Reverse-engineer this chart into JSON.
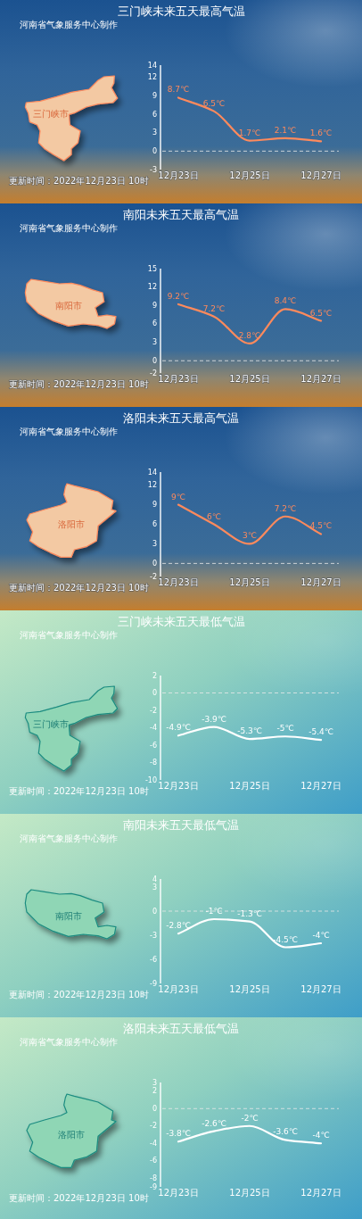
{
  "chart_data": [
    {
      "type": "line",
      "title": "三门峡未来五天最高气温",
      "categories": [
        "12月23日",
        null,
        "12月25日",
        null,
        "12月27日"
      ],
      "series": [
        {
          "color": "#ff8a5c",
          "values": [
            8.7,
            6.5,
            1.7,
            2.1,
            1.6
          ],
          "value_labels": [
            "8.7℃",
            "6.5℃",
            "1.7℃",
            "2.1℃",
            "1.6℃"
          ]
        }
      ],
      "ylim": [
        -3,
        14
      ],
      "yticks": [
        -3,
        0,
        3,
        6,
        9,
        12,
        14
      ],
      "ref_lines": [
        {
          "axis": "y",
          "value": 0,
          "line_style": "dashed",
          "color": "#e8e8e8"
        }
      ],
      "annotations": [
        "河南省气象服务中心制作",
        "更新时间：2022年12月23日 10时",
        "三门峡市"
      ]
    },
    {
      "type": "line",
      "title": "南阳未来五天最高气温",
      "categories": [
        "12月23日",
        null,
        "12月25日",
        null,
        "12月27日"
      ],
      "series": [
        {
          "color": "#ff8a5c",
          "values": [
            9.2,
            7.2,
            2.8,
            8.4,
            6.5
          ],
          "value_labels": [
            "9.2℃",
            "7.2℃",
            "2.8℃",
            "8.4℃",
            "6.5℃"
          ]
        }
      ],
      "ylim": [
        -2,
        15
      ],
      "yticks": [
        -2,
        0,
        3,
        6,
        9,
        12,
        15
      ],
      "ref_lines": [
        {
          "axis": "y",
          "value": 0,
          "line_style": "dashed",
          "color": "#e8e8e8"
        }
      ],
      "annotations": [
        "河南省气象服务中心制作",
        "更新时间：2022年12月23日 10时",
        "南阳市"
      ]
    },
    {
      "type": "line",
      "title": "洛阳未来五天最高气温",
      "categories": [
        "12月23日",
        null,
        "12月25日",
        null,
        "12月27日"
      ],
      "series": [
        {
          "color": "#ff8a5c",
          "values": [
            9,
            6,
            3,
            7.2,
            4.5
          ],
          "value_labels": [
            "9℃",
            "6℃",
            "3℃",
            "7.2℃",
            "4.5℃"
          ]
        }
      ],
      "ylim": [
        -2,
        14
      ],
      "yticks": [
        -2,
        0,
        3,
        6,
        9,
        12,
        14
      ],
      "ref_lines": [
        {
          "axis": "y",
          "value": 0,
          "line_style": "dashed",
          "color": "#e8e8e8"
        }
      ],
      "annotations": [
        "河南省气象服务中心制作",
        "更新时间：2022年12月23日 10时",
        "洛阳市"
      ]
    },
    {
      "type": "line",
      "title": "三门峡未来五天最低气温",
      "categories": [
        "12月23日",
        null,
        "12月25日",
        null,
        "12月27日"
      ],
      "series": [
        {
          "color": "#ffffff",
          "values": [
            -4.9,
            -3.9,
            -5.3,
            -5,
            -5.4
          ],
          "value_labels": [
            "-4.9℃",
            "-3.9℃",
            "-5.3℃",
            "-5℃",
            "-5.4℃"
          ]
        }
      ],
      "ylim": [
        -10,
        2
      ],
      "yticks": [
        -10,
        -8,
        -6,
        -4,
        -2,
        0,
        2
      ],
      "ref_lines": [
        {
          "axis": "y",
          "value": 0,
          "line_style": "dashed",
          "color": "#e8e8e8"
        }
      ],
      "annotations": [
        "河南省气象服务中心制作",
        "更新时间：2022年12月23日 10时",
        "三门峡市"
      ]
    },
    {
      "type": "line",
      "title": "南阳未来五天最低气温",
      "categories": [
        "12月23日",
        null,
        "12月25日",
        null,
        "12月27日"
      ],
      "series": [
        {
          "color": "#ffffff",
          "values": [
            -2.8,
            -1,
            -1.3,
            -4.5,
            -4
          ],
          "value_labels": [
            "-2.8℃",
            "-1℃",
            "-1.3℃",
            "-4.5℃",
            "-4℃"
          ]
        }
      ],
      "ylim": [
        -9,
        4
      ],
      "yticks": [
        -9,
        -6,
        -3,
        0,
        3,
        4
      ],
      "ref_lines": [
        {
          "axis": "y",
          "value": 0,
          "line_style": "dashed",
          "color": "#e8e8e8"
        }
      ],
      "annotations": [
        "河南省气象服务中心制作",
        "更新时间：2022年12月23日 10时",
        "南阳市"
      ]
    },
    {
      "type": "line",
      "title": "洛阳未来五天最低气温",
      "categories": [
        "12月23日",
        null,
        "12月25日",
        null,
        "12月27日"
      ],
      "series": [
        {
          "color": "#ffffff",
          "values": [
            -3.8,
            -2.6,
            -2,
            -3.6,
            -4
          ],
          "value_labels": [
            "-3.8℃",
            "-2.6℃",
            "-2℃",
            "-3.6℃",
            "-4℃"
          ]
        }
      ],
      "ylim": [
        -9,
        3
      ],
      "yticks": [
        -9,
        -8,
        -6,
        -4,
        -2,
        0,
        2,
        3
      ],
      "ref_lines": [
        {
          "axis": "y",
          "value": 0,
          "line_style": "dashed",
          "color": "#e8e8e8"
        }
      ],
      "annotations": [
        "河南省气象服务中心制作",
        "更新时间：2022年12月23日 10时",
        "洛阳市"
      ]
    }
  ]
}
